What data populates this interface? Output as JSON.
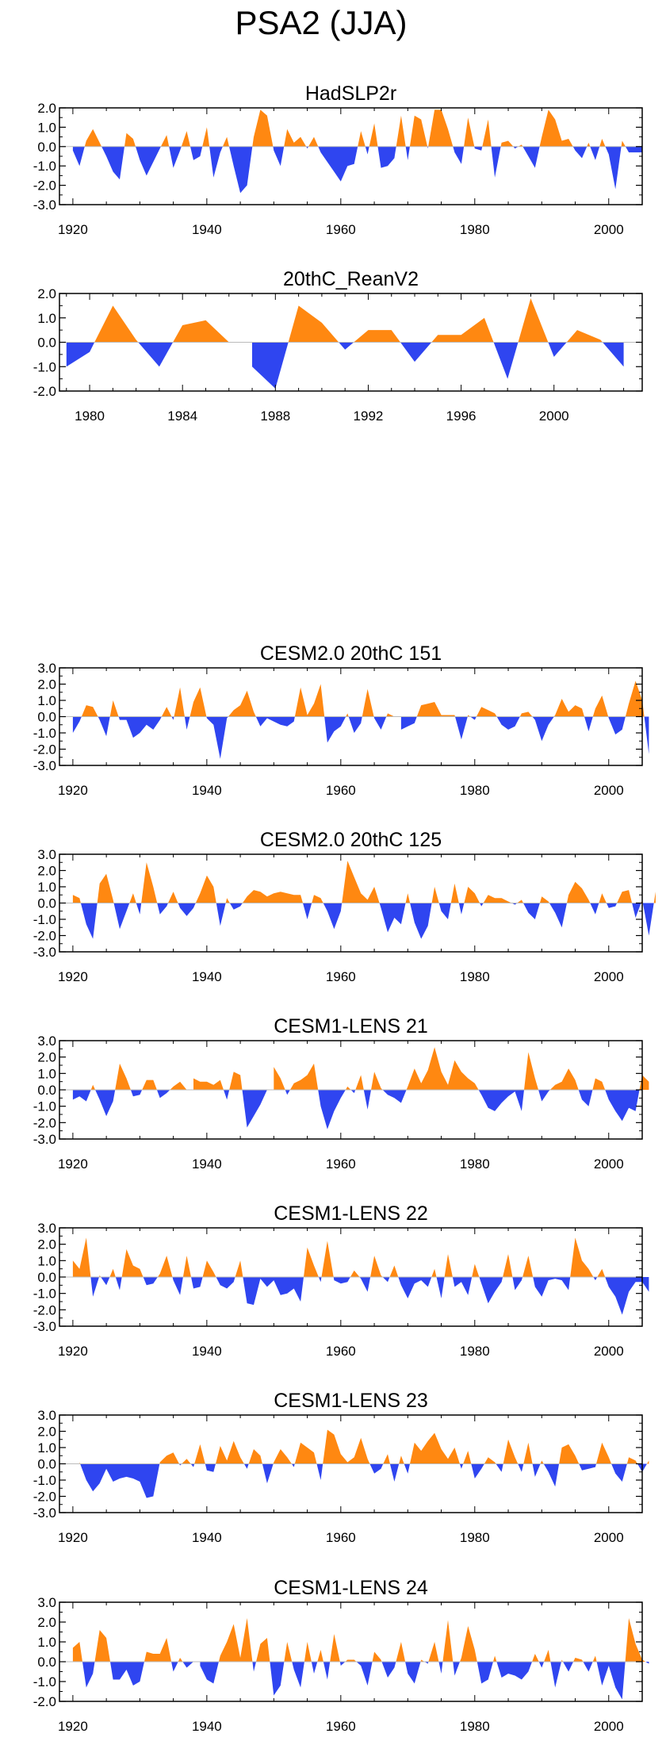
{
  "main_title": "PSA2 (JJA)",
  "colors": {
    "positive": "#ff8811",
    "negative": "#2f45f0",
    "axis": "#000000"
  },
  "chart_data": [
    {
      "type": "area",
      "title": "HadSLP2r",
      "ylim": [
        -3.0,
        2.0
      ],
      "yticks": [
        "2.0",
        "1.0",
        "0.0",
        "-1.0",
        "-2.0",
        "-3.0"
      ],
      "xlim": [
        1918,
        2005
      ],
      "xticks": [
        "1920",
        "1940",
        "1960",
        "1980",
        "2000"
      ],
      "x_start": 1920,
      "values": [
        -0.2,
        -1.0,
        0.3,
        0.9,
        0.2,
        -0.5,
        -1.3,
        -1.7,
        0.7,
        0.4,
        -0.7,
        -1.5,
        -0.8,
        -0.1,
        0.6,
        -1.1,
        -0.2,
        0.8,
        -0.7,
        -0.5,
        1.0,
        -1.6,
        -0.3,
        0.5,
        -1.0,
        -2.4,
        -2.0,
        0.5,
        1.9,
        1.6,
        -0.2,
        -1.0,
        0.9,
        0.2,
        0.5,
        -0.1,
        0.5,
        -0.3,
        -0.8,
        -1.3,
        -1.8,
        -1.0,
        -0.9,
        0.8,
        -0.4,
        1.2,
        -1.1,
        -1.0,
        -0.6,
        1.6,
        -0.7,
        1.6,
        1.4,
        -0.1,
        1.9,
        1.9,
        0.9,
        -0.3,
        -0.9,
        1.5,
        -0.1,
        -0.2,
        1.4,
        -1.6,
        0.2,
        0.3,
        -0.1,
        0.1,
        -0.5,
        -1.1,
        0.5,
        1.9,
        1.4,
        0.3,
        0.4,
        -0.2,
        -0.6,
        0.2,
        -0.7,
        0.4,
        -0.4,
        -2.2,
        0.3,
        -0.3,
        -0.3,
        -0.3
      ]
    },
    {
      "type": "area",
      "title": "20thC_ReanV2",
      "ylim": [
        -2.0,
        2.0
      ],
      "yticks": [
        "2.0",
        "1.0",
        "0.0",
        "-1.0",
        "-2.0"
      ],
      "xlim": [
        1978.7,
        2003.8
      ],
      "xticks": [
        "1980",
        "1984",
        "1988",
        "1992",
        "1996",
        "2000"
      ],
      "x_start": 1979,
      "values": [
        -1.0,
        -0.4,
        1.5,
        0.1,
        -1.0,
        0.7,
        0.9,
        0.0,
        -1.0,
        -1.9,
        1.5,
        0.8,
        -0.3,
        0.5,
        0.5,
        -0.8,
        0.3,
        0.3,
        1.0,
        -1.5,
        1.8,
        -0.6,
        0.5,
        0.1,
        -1.0
      ]
    },
    {
      "type": "area",
      "title": "CESM2.0 20thC 151",
      "ylim": [
        -3.0,
        3.0
      ],
      "yticks": [
        "3.0",
        "2.0",
        "1.0",
        "0.0",
        "-1.0",
        "-2.0",
        "-3.0"
      ],
      "xlim": [
        1918,
        2005
      ],
      "xticks": [
        "1920",
        "1940",
        "1960",
        "1980",
        "2000"
      ],
      "x_start": 1920,
      "values": [
        -1.0,
        -0.3,
        0.7,
        0.6,
        -0.2,
        -1.2,
        1.0,
        -0.2,
        -0.2,
        -1.3,
        -1.0,
        -0.5,
        -0.8,
        -0.2,
        0.6,
        -0.2,
        1.8,
        -0.8,
        0.9,
        1.8,
        -0.1,
        -0.5,
        -2.6,
        -0.1,
        0.4,
        0.7,
        1.6,
        0.3,
        -0.6,
        -0.1,
        -0.3,
        -0.5,
        -0.6,
        -0.3,
        1.8,
        0.1,
        0.8,
        2.0,
        -1.6,
        -0.9,
        -0.6,
        0.2,
        -1.0,
        -0.4,
        1.7,
        -0.1,
        -0.8,
        0.2,
        0.0,
        -0.8,
        -0.6,
        -0.4,
        0.7,
        0.8,
        0.9,
        0.1,
        0.1,
        0.1,
        -1.4,
        0.1,
        -0.2,
        0.6,
        0.4,
        0.2,
        -0.5,
        -0.8,
        -0.6,
        0.2,
        0.3,
        -0.2,
        -1.5,
        -0.5,
        0.1,
        1.1,
        0.3,
        0.7,
        0.5,
        -0.9,
        0.5,
        1.3,
        -0.1,
        -1.1,
        -0.8,
        0.8,
        2.2,
        1.0,
        -2.3
      ]
    },
    {
      "type": "area",
      "title": "CESM2.0 20thC 125",
      "ylim": [
        -3.0,
        3.0
      ],
      "yticks": [
        "3.0",
        "2.0",
        "1.0",
        "0.0",
        "-1.0",
        "-2.0",
        "-3.0"
      ],
      "xlim": [
        1918,
        2005
      ],
      "xticks": [
        "1920",
        "1940",
        "1960",
        "1980",
        "2000"
      ],
      "x_start": 1920,
      "values": [
        0.5,
        0.3,
        -1.3,
        -2.2,
        1.2,
        1.8,
        0.2,
        -1.6,
        -0.5,
        0.6,
        -0.7,
        2.5,
        1.0,
        -0.7,
        -0.2,
        0.7,
        -0.3,
        -0.8,
        -0.3,
        0.6,
        1.7,
        1.0,
        -1.4,
        0.3,
        -0.4,
        -0.2,
        0.4,
        0.8,
        0.7,
        0.4,
        0.6,
        0.7,
        0.6,
        0.5,
        0.5,
        -1.0,
        0.5,
        0.3,
        -0.5,
        -1.6,
        -0.5,
        2.6,
        1.6,
        0.6,
        0.2,
        1.0,
        -0.3,
        -1.8,
        -0.9,
        -1.3,
        0.6,
        -1.2,
        -2.2,
        -1.4,
        1.0,
        -0.5,
        -1.0,
        1.2,
        -0.7,
        1.0,
        0.6,
        -0.2,
        0.5,
        0.3,
        0.3,
        0.1,
        -0.1,
        0.2,
        -0.6,
        -1.0,
        0.4,
        0.1,
        -0.6,
        -1.5,
        0.5,
        1.3,
        0.9,
        0.2,
        -0.7,
        0.6,
        -0.3,
        -0.2,
        0.7,
        0.8,
        -0.9,
        0.2,
        -2.0,
        0.7
      ]
    },
    {
      "type": "area",
      "title": "CESM1-LENS 21",
      "ylim": [
        -3.0,
        3.0
      ],
      "yticks": [
        "3.0",
        "2.0",
        "1.0",
        "0.0",
        "-1.0",
        "-2.0",
        "-3.0"
      ],
      "xlim": [
        1918,
        2005
      ],
      "xticks": [
        "1920",
        "1940",
        "1960",
        "1980",
        "2000"
      ],
      "x_start": 1920,
      "values": [
        -0.6,
        -0.4,
        -0.7,
        0.3,
        -0.6,
        -1.6,
        -0.7,
        1.6,
        0.7,
        -0.4,
        -0.3,
        0.6,
        0.6,
        -0.5,
        -0.2,
        0.2,
        0.5,
        0.0,
        0.7,
        0.5,
        0.5,
        0.3,
        0.6,
        -0.6,
        1.1,
        0.9,
        -2.3,
        -1.6,
        -0.9,
        0.0,
        1.4,
        0.7,
        -0.3,
        0.4,
        0.6,
        0.9,
        1.6,
        -1.0,
        -2.4,
        -1.3,
        -0.5,
        0.2,
        -0.2,
        0.9,
        -1.2,
        1.1,
        0.1,
        -0.3,
        -0.5,
        -0.8,
        0.2,
        1.3,
        0.4,
        1.2,
        2.6,
        1.1,
        0.3,
        1.8,
        1.1,
        0.7,
        0.4,
        -0.3,
        -1.1,
        -1.3,
        -0.8,
        -0.4,
        -0.1,
        -1.3,
        2.3,
        0.7,
        -0.7,
        -0.1,
        0.3,
        0.5,
        1.3,
        0.6,
        -0.6,
        -1.0,
        0.7,
        0.5,
        -0.6,
        -1.3,
        -1.9,
        -1.1,
        -1.3,
        0.9,
        0.5
      ]
    },
    {
      "type": "area",
      "title": "CESM1-LENS 22",
      "ylim": [
        -3.0,
        3.0
      ],
      "yticks": [
        "3.0",
        "2.0",
        "1.0",
        "0.0",
        "-1.0",
        "-2.0",
        "-3.0"
      ],
      "xlim": [
        1918,
        2005
      ],
      "xticks": [
        "1920",
        "1940",
        "1960",
        "1980",
        "2000"
      ],
      "x_start": 1920,
      "values": [
        1.0,
        0.5,
        2.4,
        -1.2,
        0.1,
        -0.5,
        0.5,
        -0.8,
        1.7,
        0.7,
        0.5,
        -0.5,
        -0.4,
        0.2,
        1.3,
        -0.2,
        -1.1,
        1.3,
        -0.7,
        -0.6,
        1.0,
        0.3,
        -0.5,
        -0.7,
        -0.3,
        1.0,
        -1.6,
        -1.7,
        -0.1,
        -0.6,
        -0.2,
        -1.1,
        -1.0,
        -0.7,
        -1.5,
        1.8,
        0.7,
        -0.3,
        2.2,
        -0.2,
        -0.4,
        -0.3,
        0.4,
        -0.1,
        -0.9,
        1.3,
        0.1,
        -0.3,
        0.7,
        -0.5,
        -1.3,
        -0.4,
        -0.2,
        -0.6,
        0.5,
        -1.3,
        1.4,
        -0.6,
        -0.3,
        -1.1,
        0.8,
        -0.4,
        -1.6,
        -0.9,
        -0.3,
        1.4,
        -0.8,
        -0.2,
        1.3,
        -0.6,
        -1.2,
        -0.2,
        -0.1,
        -0.2,
        -0.8,
        2.4,
        1.0,
        0.5,
        -0.2,
        0.5,
        -0.6,
        -1.2,
        -2.3,
        -0.9,
        -0.3,
        -0.3,
        -0.9
      ]
    },
    {
      "type": "area",
      "title": "CESM1-LENS 23",
      "ylim": [
        -3.0,
        3.0
      ],
      "yticks": [
        "3.0",
        "2.0",
        "1.0",
        "0.0",
        "-1.0",
        "-2.0",
        "-3.0"
      ],
      "xlim": [
        1918,
        2005
      ],
      "xticks": [
        "1920",
        "1940",
        "1960",
        "1980",
        "2000"
      ],
      "x_start": 1920,
      "values": [
        0.0,
        0.1,
        -1.0,
        -1.7,
        -1.2,
        -0.3,
        -1.1,
        -0.9,
        -0.8,
        -0.9,
        -1.1,
        -2.1,
        -2.0,
        0.1,
        0.5,
        0.7,
        -0.1,
        0.3,
        -0.2,
        1.2,
        -0.4,
        -0.5,
        1.1,
        0.2,
        1.4,
        0.4,
        -0.3,
        0.9,
        0.5,
        -1.2,
        0.1,
        0.9,
        0.4,
        -0.2,
        1.3,
        1.0,
        0.7,
        -1.0,
        2.1,
        1.8,
        0.6,
        0.1,
        0.4,
        1.6,
        0.3,
        -0.6,
        -0.3,
        0.6,
        -1.1,
        0.5,
        -0.6,
        1.3,
        0.8,
        1.4,
        1.9,
        0.9,
        0.3,
        1.0,
        -0.3,
        0.8,
        -0.9,
        -0.3,
        0.4,
        0.1,
        -0.5,
        1.5,
        0.4,
        -0.5,
        1.3,
        -0.8,
        0.2,
        -0.5,
        -1.4,
        1.0,
        1.2,
        0.5,
        -0.4,
        -0.3,
        -0.2,
        1.3,
        0.4,
        -0.6,
        -1.1,
        0.4,
        0.2,
        -0.5,
        0.2
      ]
    },
    {
      "type": "area",
      "title": "CESM1-LENS 24",
      "ylim": [
        -2.0,
        3.0
      ],
      "yticks": [
        "3.0",
        "2.0",
        "1.0",
        "0.0",
        "-1.0",
        "-2.0"
      ],
      "xlim": [
        1918,
        2005
      ],
      "xticks": [
        "1920",
        "1940",
        "1960",
        "1980",
        "2000"
      ],
      "x_start": 1920,
      "values": [
        0.7,
        1.0,
        -1.3,
        -0.6,
        1.6,
        1.2,
        -0.9,
        -0.9,
        -0.4,
        -1.2,
        -1.0,
        0.5,
        0.4,
        0.4,
        1.2,
        -0.5,
        0.2,
        -0.3,
        0.0,
        -0.2,
        -0.9,
        -1.1,
        0.3,
        1.0,
        1.9,
        0.2,
        2.2,
        -0.5,
        0.9,
        1.2,
        -1.7,
        -1.2,
        1.0,
        -0.4,
        -1.3,
        1.0,
        -0.6,
        0.6,
        -0.9,
        1.4,
        -0.2,
        0.1,
        0.1,
        -0.2,
        -1.2,
        0.5,
        0.1,
        -0.8,
        -0.3,
        1.0,
        -0.6,
        -1.1,
        0.1,
        -0.1,
        1.0,
        -0.6,
        2.1,
        -0.7,
        0.2,
        1.8,
        0.6,
        -1.1,
        -0.9,
        0.3,
        -0.8,
        -0.6,
        -0.7,
        -0.9,
        -0.5,
        0.4,
        -0.3,
        0.6,
        -1.3,
        0.1,
        -0.5,
        0.2,
        0.1,
        -0.5,
        0.3,
        -1.2,
        -0.2,
        -1.3,
        -1.9,
        2.2,
        0.9,
        0.1,
        -0.1
      ]
    }
  ]
}
